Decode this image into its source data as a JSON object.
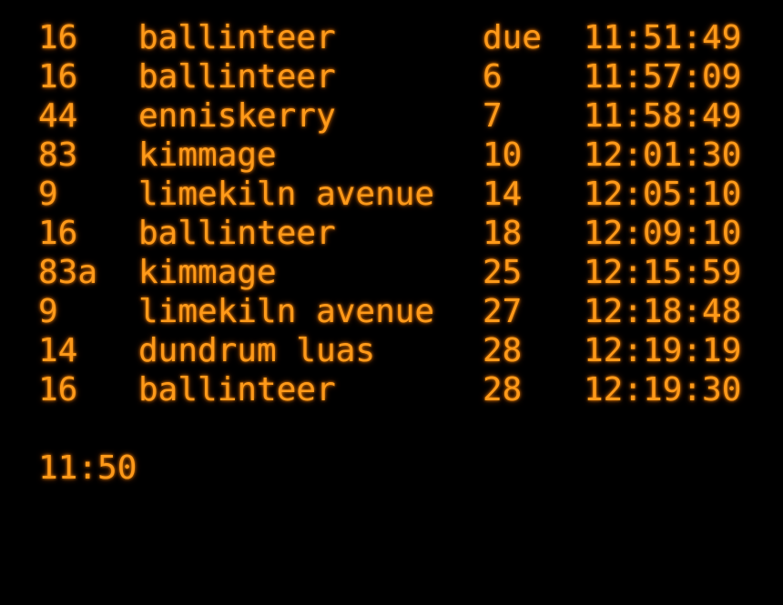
{
  "accent_color": "#ff9a1a",
  "background_color": "#000000",
  "departures": [
    {
      "route": "16",
      "destination": "ballinteer",
      "due": "due",
      "time": "11:51:49"
    },
    {
      "route": "16",
      "destination": "ballinteer",
      "due": "6",
      "time": "11:57:09"
    },
    {
      "route": "44",
      "destination": "enniskerry",
      "due": "7",
      "time": "11:58:49"
    },
    {
      "route": "83",
      "destination": "kimmage",
      "due": "10",
      "time": "12:01:30"
    },
    {
      "route": "9",
      "destination": "limekiln avenue",
      "due": "14",
      "time": "12:05:10"
    },
    {
      "route": "16",
      "destination": "ballinteer",
      "due": "18",
      "time": "12:09:10"
    },
    {
      "route": "83a",
      "destination": "kimmage",
      "due": "25",
      "time": "12:15:59"
    },
    {
      "route": "9",
      "destination": "limekiln avenue",
      "due": "27",
      "time": "12:18:48"
    },
    {
      "route": "14",
      "destination": "dundrum luas",
      "due": "28",
      "time": "12:19:19"
    },
    {
      "route": "16",
      "destination": "ballinteer",
      "due": "28",
      "time": "12:19:30"
    }
  ],
  "clock": "11:50"
}
